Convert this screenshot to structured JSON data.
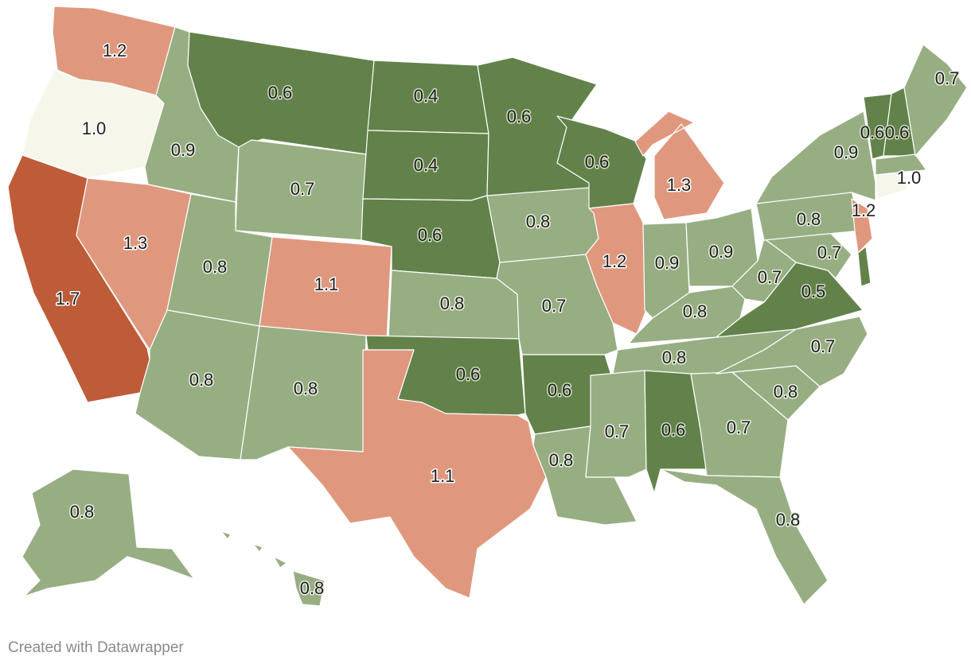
{
  "map_data": {
    "type": "choropleth",
    "region": "United States",
    "colors": {
      "0.4": "#62824a",
      "0.5": "#62824a",
      "0.6": "#62824a",
      "0.7": "#97ae83",
      "0.8": "#97ae83",
      "0.9": "#97ae83",
      "1.0": "#f6f7ea",
      "1.1": "#df987e",
      "1.2": "#df987e",
      "1.3": "#df987e",
      "1.7": "#be5b39"
    },
    "states": [
      {
        "id": "WA",
        "value": "1.2"
      },
      {
        "id": "OR",
        "value": "1.0"
      },
      {
        "id": "CA",
        "value": "1.7"
      },
      {
        "id": "ID",
        "value": "0.9"
      },
      {
        "id": "NV",
        "value": "1.3"
      },
      {
        "id": "MT",
        "value": "0.6"
      },
      {
        "id": "WY",
        "value": "0.7"
      },
      {
        "id": "UT",
        "value": "0.8"
      },
      {
        "id": "AZ",
        "value": "0.8"
      },
      {
        "id": "CO",
        "value": "1.1"
      },
      {
        "id": "NM",
        "value": "0.8"
      },
      {
        "id": "ND",
        "value": "0.4"
      },
      {
        "id": "SD",
        "value": "0.4"
      },
      {
        "id": "NE",
        "value": "0.6"
      },
      {
        "id": "KS",
        "value": "0.8"
      },
      {
        "id": "OK",
        "value": "0.6"
      },
      {
        "id": "TX",
        "value": "1.1"
      },
      {
        "id": "MN",
        "value": "0.6"
      },
      {
        "id": "IA",
        "value": "0.8"
      },
      {
        "id": "MO",
        "value": "0.7"
      },
      {
        "id": "AR",
        "value": "0.6"
      },
      {
        "id": "LA",
        "value": "0.8"
      },
      {
        "id": "WI",
        "value": "0.6"
      },
      {
        "id": "IL",
        "value": "1.2"
      },
      {
        "id": "MI",
        "value": "1.3"
      },
      {
        "id": "IN",
        "value": "0.9"
      },
      {
        "id": "OH",
        "value": "0.9"
      },
      {
        "id": "KY",
        "value": "0.8"
      },
      {
        "id": "TN",
        "value": "0.8"
      },
      {
        "id": "MS",
        "value": "0.7"
      },
      {
        "id": "AL",
        "value": "0.6"
      },
      {
        "id": "GA",
        "value": "0.7"
      },
      {
        "id": "FL",
        "value": "0.8"
      },
      {
        "id": "SC",
        "value": "0.8"
      },
      {
        "id": "NC",
        "value": "0.7"
      },
      {
        "id": "VA",
        "value": "0.5"
      },
      {
        "id": "WV",
        "value": "0.7"
      },
      {
        "id": "MD",
        "value": "0.7"
      },
      {
        "id": "DE",
        "value": ""
      },
      {
        "id": "PA",
        "value": "0.8"
      },
      {
        "id": "NJ",
        "value": "1.2"
      },
      {
        "id": "NY",
        "value": "0.9"
      },
      {
        "id": "CT",
        "value": "1.0"
      },
      {
        "id": "VT",
        "value": "0.6"
      },
      {
        "id": "NH",
        "value": "0.6"
      },
      {
        "id": "MA",
        "value": ""
      },
      {
        "id": "ME",
        "value": "0.7"
      },
      {
        "id": "AK",
        "value": "0.8"
      },
      {
        "id": "HI",
        "value": "0.8"
      }
    ]
  },
  "credit": "Created with Datawrapper"
}
